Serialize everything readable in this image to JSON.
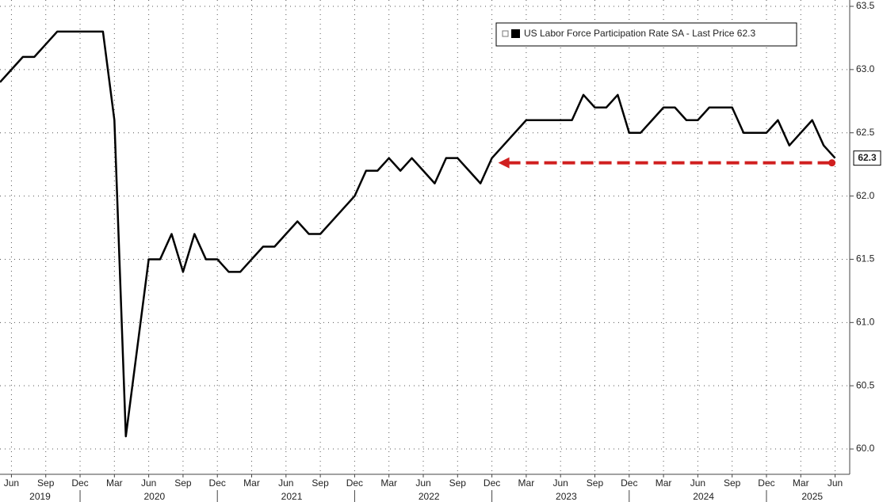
{
  "chart_data": {
    "type": "line",
    "x": [
      "2019-05",
      "2019-06",
      "2019-07",
      "2019-08",
      "2019-09",
      "2019-10",
      "2019-11",
      "2019-12",
      "2020-01",
      "2020-02",
      "2020-03",
      "2020-04",
      "2020-05",
      "2020-06",
      "2020-07",
      "2020-08",
      "2020-09",
      "2020-10",
      "2020-11",
      "2020-12",
      "2021-01",
      "2021-02",
      "2021-03",
      "2021-04",
      "2021-05",
      "2021-06",
      "2021-07",
      "2021-08",
      "2021-09",
      "2021-10",
      "2021-11",
      "2021-12",
      "2022-01",
      "2022-02",
      "2022-03",
      "2022-04",
      "2022-05",
      "2022-06",
      "2022-07",
      "2022-08",
      "2022-09",
      "2022-10",
      "2022-11",
      "2022-12",
      "2023-01",
      "2023-02",
      "2023-03",
      "2023-04",
      "2023-05",
      "2023-06",
      "2023-07",
      "2023-08",
      "2023-09",
      "2023-10",
      "2023-11",
      "2023-12",
      "2024-01",
      "2024-02",
      "2024-03",
      "2024-04",
      "2024-05",
      "2024-06",
      "2024-07",
      "2024-08",
      "2024-09",
      "2024-10",
      "2024-11",
      "2024-12",
      "2025-01",
      "2025-02",
      "2025-03",
      "2025-04",
      "2025-05",
      "2025-06"
    ],
    "series": [
      {
        "name": "US Labor Force Participation Rate SA - Last Price 62.3",
        "color": "#000000",
        "values": [
          62.9,
          63.0,
          63.1,
          63.1,
          63.2,
          63.3,
          63.3,
          63.3,
          63.3,
          63.3,
          62.6,
          60.1,
          60.8,
          61.5,
          61.5,
          61.7,
          61.4,
          61.7,
          61.5,
          61.5,
          61.4,
          61.4,
          61.5,
          61.6,
          61.6,
          61.7,
          61.8,
          61.7,
          61.7,
          61.8,
          61.9,
          62.0,
          62.2,
          62.2,
          62.3,
          62.2,
          62.3,
          62.2,
          62.1,
          62.3,
          62.3,
          62.2,
          62.1,
          62.3,
          62.4,
          62.5,
          62.6,
          62.6,
          62.6,
          62.6,
          62.6,
          62.8,
          62.7,
          62.7,
          62.8,
          62.5,
          62.5,
          62.6,
          62.7,
          62.7,
          62.6,
          62.6,
          62.7,
          62.7,
          62.7,
          62.5,
          62.5,
          62.5,
          62.6,
          62.4,
          62.5,
          62.6,
          62.4,
          62.3
        ]
      }
    ],
    "xlim": [
      "2019-05",
      "2025-07"
    ],
    "xticks": [
      {
        "value": "2019-06",
        "label": "Jun"
      },
      {
        "value": "2019-09",
        "label": "Sep"
      },
      {
        "value": "2019-12",
        "label": "Dec"
      },
      {
        "value": "2020-03",
        "label": "Mar"
      },
      {
        "value": "2020-06",
        "label": "Jun"
      },
      {
        "value": "2020-09",
        "label": "Sep"
      },
      {
        "value": "2020-12",
        "label": "Dec"
      },
      {
        "value": "2021-03",
        "label": "Mar"
      },
      {
        "value": "2021-06",
        "label": "Jun"
      },
      {
        "value": "2021-09",
        "label": "Sep"
      },
      {
        "value": "2021-12",
        "label": "Dec"
      },
      {
        "value": "2022-03",
        "label": "Mar"
      },
      {
        "value": "2022-06",
        "label": "Jun"
      },
      {
        "value": "2022-09",
        "label": "Sep"
      },
      {
        "value": "2022-12",
        "label": "Dec"
      },
      {
        "value": "2023-03",
        "label": "Mar"
      },
      {
        "value": "2023-06",
        "label": "Jun"
      },
      {
        "value": "2023-09",
        "label": "Sep"
      },
      {
        "value": "2023-12",
        "label": "Dec"
      },
      {
        "value": "2024-03",
        "label": "Mar"
      },
      {
        "value": "2024-06",
        "label": "Jun"
      },
      {
        "value": "2024-09",
        "label": "Sep"
      },
      {
        "value": "2024-12",
        "label": "Dec"
      },
      {
        "value": "2025-03",
        "label": "Mar"
      },
      {
        "value": "2025-06",
        "label": "Jun"
      }
    ],
    "x_years": [
      "2019",
      "2020",
      "2021",
      "2022",
      "2023",
      "2024",
      "2025"
    ],
    "ylim": [
      59.8,
      63.55
    ],
    "yticks": [
      {
        "value": 60,
        "label": "60.0"
      },
      60.5,
      {
        "value": 61,
        "label": "61.0"
      },
      61.5,
      {
        "value": 62,
        "label": "62.0"
      },
      62.5,
      {
        "value": 63,
        "label": "63.0"
      },
      63.5
    ],
    "grid": true
  }
}
